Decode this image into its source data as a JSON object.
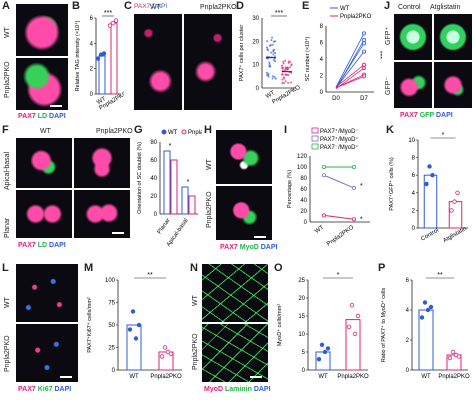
{
  "panels": {
    "A": {
      "letter": "A",
      "rows": [
        "WT",
        "Pnpla2PKO"
      ],
      "channels": {
        "pax7": "PAX7",
        "ld": "LD",
        "dapi": "DAPI"
      }
    },
    "B": {
      "letter": "B",
      "sig": "***",
      "ylabel": "Relative TAG intensity (×10⁴)"
    },
    "C": {
      "letter": "C",
      "cols": [
        "WT",
        "Pnpla2PKO"
      ],
      "channels": {
        "pax7": "PAX7",
        "dapi": "DAPI"
      }
    },
    "D": {
      "letter": "D",
      "sig": "***",
      "ylabel": "PAX7⁺ cells per cluster"
    },
    "E": {
      "letter": "E",
      "sig": "***",
      "ylabel": "SC number (×10⁴)"
    },
    "F": {
      "letter": "F",
      "cols": [
        "WT",
        "Pnpla2PKO"
      ],
      "rows": [
        "Apical-basal",
        "Planar"
      ],
      "channels": {
        "pax7": "PAX7",
        "ld": "LD",
        "dapi": "DAPI"
      }
    },
    "G": {
      "letter": "G",
      "ylabel": "Orientation of SC doublet (%)",
      "sig1": "*",
      "sig2": "*"
    },
    "H": {
      "letter": "H",
      "rows": [
        "WT",
        "Pnpla2PKO"
      ],
      "channels": {
        "pax7": "PAX7",
        "myod": "MyoD",
        "dapi": "DAPI"
      }
    },
    "I": {
      "letter": "I",
      "ylabel": "Percentage (%)",
      "sig1": "*",
      "sig2": "*"
    },
    "J": {
      "letter": "J",
      "cols": [
        "Control",
        "Atglistatin"
      ],
      "rows": [
        "GFP⁺",
        "GFP⁻"
      ],
      "channels": {
        "pax7": "PAX7",
        "gfp": "GFP",
        "dapi": "DAPI"
      }
    },
    "K": {
      "letter": "K",
      "sig": "*",
      "ylabel": "PAX7⁺GFP⁺ cells (%)"
    },
    "L": {
      "letter": "L",
      "rows": [
        "WT",
        "Pnpla2PKO"
      ],
      "channels": {
        "pax7": "PAX7",
        "ki67": "Ki67",
        "dapi": "DAPI"
      }
    },
    "M": {
      "letter": "M",
      "sig": "**",
      "ylabel": "PAX7⁺Ki67⁺ cells/mm²"
    },
    "N": {
      "letter": "N",
      "rows": [
        "WT",
        "Pnpla2PKO"
      ],
      "channels": {
        "myod": "MyoD",
        "laminin": "Laminin",
        "dapi": "DAPI"
      }
    },
    "O": {
      "letter": "O",
      "sig": "*",
      "ylabel": "MyoD⁺ cells/mm²"
    },
    "P": {
      "letter": "P",
      "sig": "**",
      "ylabel": "Ratio of PAX7⁺ to MyoD⁺ cells"
    }
  },
  "colors": {
    "wt": "#2f5dd8",
    "ko": "#e0207a",
    "pax7": "#e0207a",
    "ld": "#25b34b",
    "dapi": "#2f5dd8"
  },
  "chart_data": [
    {
      "panel": "B",
      "type": "bar",
      "categories": [
        "WT",
        "Pnpla2PKO"
      ],
      "values": [
        3.0,
        5.6
      ],
      "ylim": [
        0,
        6
      ],
      "yticks": [
        0,
        2,
        4,
        6
      ],
      "points": [
        [
          2.8,
          3.1,
          3.2
        ],
        [
          5.4,
          5.6,
          5.8
        ]
      ]
    },
    {
      "panel": "D",
      "type": "scatter",
      "categories": [
        "WT",
        "Pnpla2PKO"
      ],
      "means": [
        13,
        7
      ],
      "ylim": [
        0,
        30
      ],
      "yticks": [
        0,
        10,
        20,
        30
      ]
    },
    {
      "panel": "E",
      "type": "line",
      "categories": [
        "D0",
        "D7"
      ],
      "ylim": [
        0,
        8
      ],
      "yticks": [
        0,
        2,
        4,
        6,
        8
      ],
      "series": [
        {
          "name": "WT",
          "values": [
            [
              0.5,
              5.9
            ],
            [
              0.4,
              6.3
            ],
            [
              0.6,
              7.1
            ],
            [
              0.5,
              4.9
            ]
          ]
        },
        {
          "name": "Pnpla2PKO",
          "values": [
            [
              0.5,
              2.1
            ],
            [
              0.4,
              2.9
            ],
            [
              0.6,
              3.3
            ],
            [
              0.5,
              1.9
            ]
          ]
        }
      ]
    },
    {
      "panel": "G",
      "type": "bar",
      "categories": [
        "Planar",
        "Apical-basal"
      ],
      "series": [
        {
          "name": "WT",
          "values": [
            70,
            30
          ]
        },
        {
          "name": "Pnpla2PKO",
          "values": [
            60,
            20
          ]
        }
      ],
      "ylim": [
        0,
        80
      ],
      "yticks": [
        0,
        20,
        40,
        60,
        80
      ]
    },
    {
      "panel": "I",
      "type": "line",
      "categories": [
        "WT",
        "Pnpla2PKO"
      ],
      "series": [
        {
          "name": "PAX7⁺/MyoD⁻",
          "values": [
            12,
            5
          ]
        },
        {
          "name": "PAX7⁺/MyoD⁺",
          "values": [
            85,
            62
          ]
        },
        {
          "name": "PAX7⁻/MyoD⁺",
          "values": [
            100,
            100
          ]
        }
      ],
      "ylim": [
        0,
        120
      ],
      "yticks": [
        0,
        20,
        40,
        60,
        80,
        100,
        120
      ]
    },
    {
      "panel": "K",
      "type": "bar",
      "categories": [
        "Control",
        "Atglistatin"
      ],
      "values": [
        6,
        3
      ],
      "ylim": [
        0,
        10
      ],
      "yticks": [
        0,
        2,
        4,
        6,
        8,
        10
      ],
      "points": [
        [
          5,
          7,
          6
        ],
        [
          2,
          3,
          4
        ]
      ]
    },
    {
      "panel": "M",
      "type": "bar",
      "categories": [
        "WT",
        "Pnpla2PKO"
      ],
      "values": [
        50,
        20
      ],
      "ylim": [
        0,
        100
      ],
      "yticks": [
        0,
        25,
        50,
        75,
        100
      ],
      "points": [
        [
          45,
          65,
          35,
          50
        ],
        [
          15,
          25,
          20,
          18
        ]
      ]
    },
    {
      "panel": "O",
      "type": "bar",
      "categories": [
        "WT",
        "Pnpla2PKO"
      ],
      "values": [
        5,
        14
      ],
      "ylim": [
        0,
        25
      ],
      "yticks": [
        0,
        5,
        10,
        15,
        20,
        25
      ],
      "points": [
        [
          3,
          7,
          5,
          6
        ],
        [
          12,
          18,
          10,
          15
        ]
      ]
    },
    {
      "panel": "P",
      "type": "bar",
      "categories": [
        "WT",
        "Pnpla2PKO"
      ],
      "values": [
        4,
        1
      ],
      "ylim": [
        0,
        6
      ],
      "yticks": [
        0,
        2,
        4,
        6
      ],
      "points": [
        [
          3.5,
          4.5,
          4,
          4.2
        ],
        [
          0.8,
          1.2,
          1,
          0.9
        ]
      ]
    }
  ]
}
